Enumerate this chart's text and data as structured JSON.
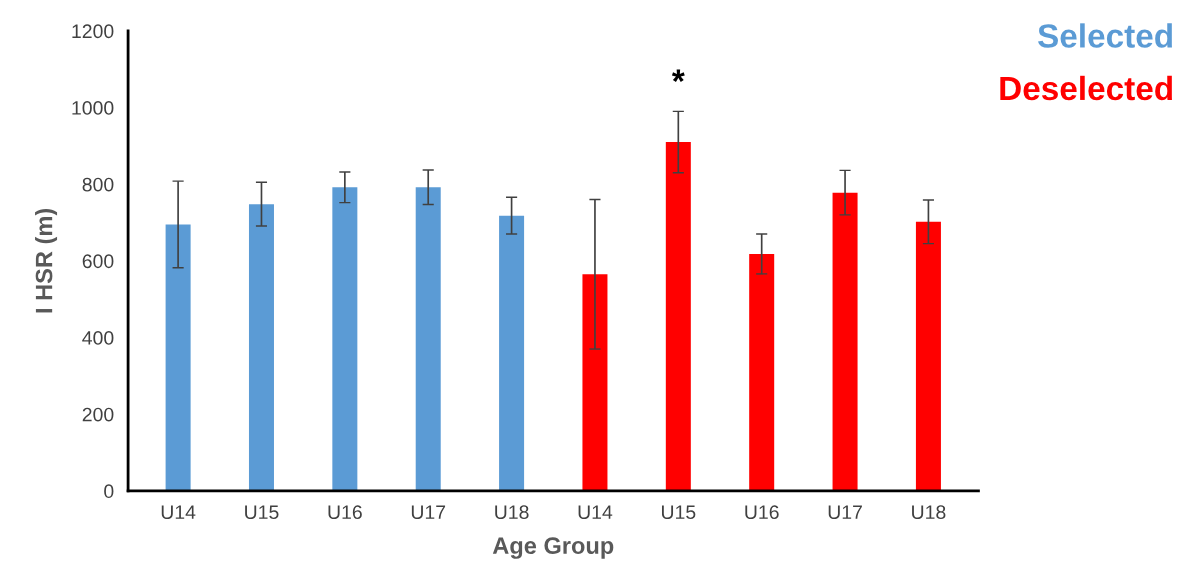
{
  "chart_data": {
    "type": "bar",
    "xlabel": "Age Group",
    "ylabel": "I HSR (m)",
    "categories": [
      "U14",
      "U15",
      "U16",
      "U17",
      "U18",
      "U14",
      "U15",
      "U16",
      "U17",
      "U18"
    ],
    "series": [
      {
        "name": "Selected",
        "color": "#5b9bd5",
        "values": [
          695,
          748,
          792,
          792,
          718,
          null,
          null,
          null,
          null,
          null
        ],
        "errors": [
          113,
          57,
          40,
          45,
          48,
          null,
          null,
          null,
          null,
          null
        ]
      },
      {
        "name": "Deselected",
        "color": "#ff0000",
        "values": [
          null,
          null,
          null,
          null,
          null,
          565,
          910,
          618,
          778,
          702
        ],
        "errors": [
          null,
          null,
          null,
          null,
          null,
          195,
          80,
          52,
          58,
          57
        ]
      }
    ],
    "ylim": [
      0,
      1200
    ],
    "yticks": [
      0,
      200,
      400,
      600,
      800,
      1000,
      1200
    ],
    "annotations": [
      "*"
    ],
    "legend": "top right",
    "grid": false
  }
}
